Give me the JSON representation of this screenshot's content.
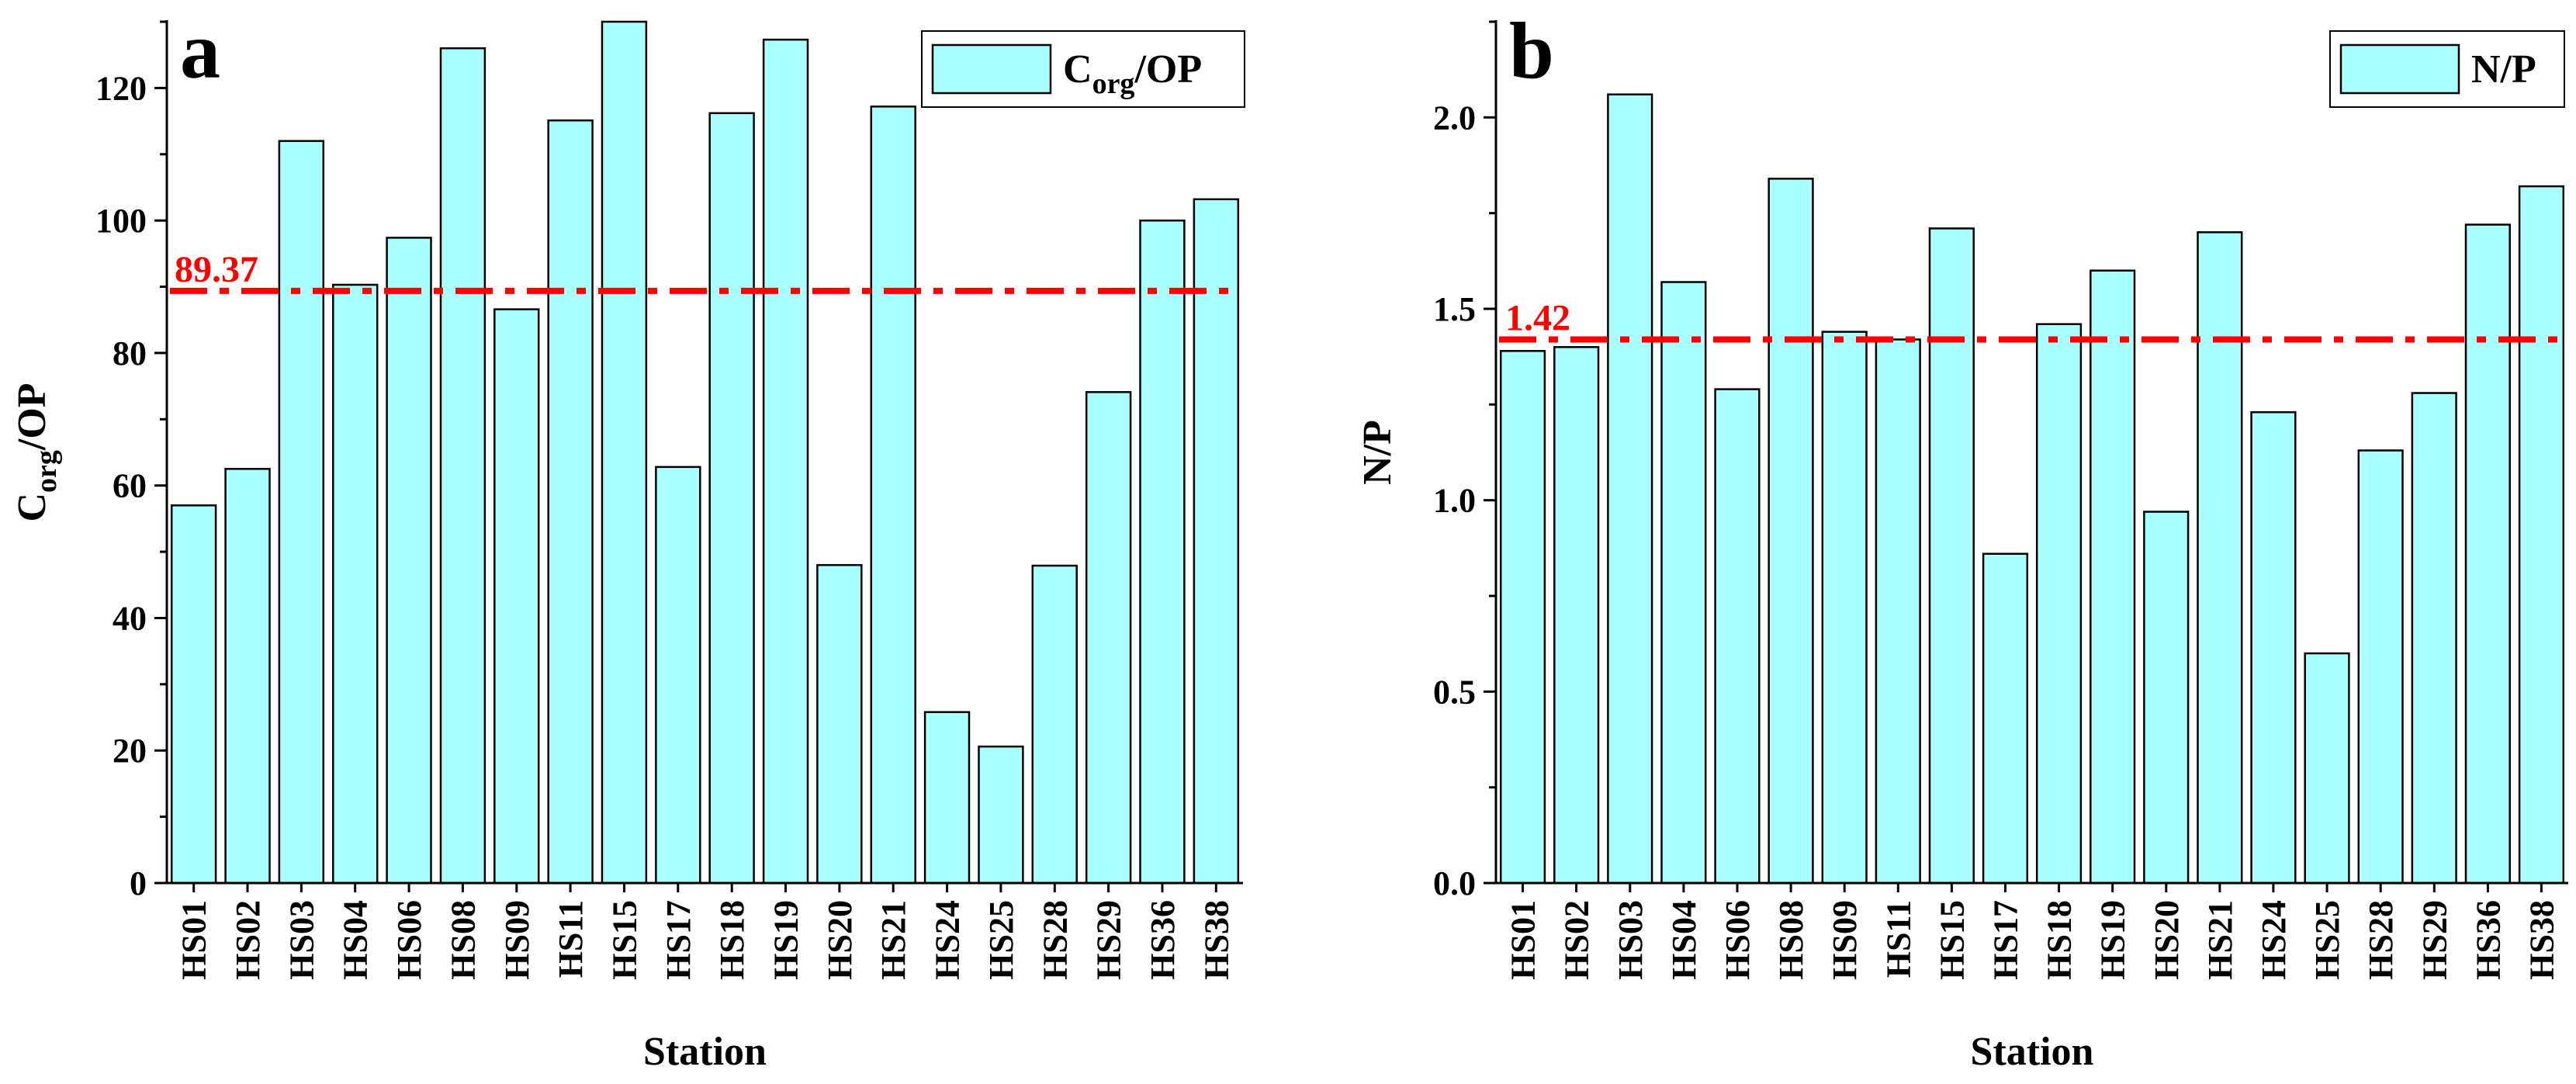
{
  "chart_data": [
    {
      "panel": "a",
      "type": "bar",
      "title": "",
      "xlabel": "Station",
      "ylabel": {
        "main": "C",
        "sub": "org",
        "rest": "/OP"
      },
      "legend": {
        "main": "C",
        "sub": "org",
        "rest": "/OP",
        "position": "top-right"
      },
      "ylim": [
        0,
        130
      ],
      "yticks": [
        0,
        20,
        40,
        60,
        80,
        100,
        120
      ],
      "ytick_labels": [
        "0",
        "20",
        "40",
        "60",
        "80",
        "100",
        "120"
      ],
      "categories": [
        "HS01",
        "HS02",
        "HS03",
        "HS04",
        "HS06",
        "HS08",
        "HS09",
        "HS11",
        "HS15",
        "HS17",
        "HS18",
        "HS19",
        "HS20",
        "HS21",
        "HS24",
        "HS25",
        "HS28",
        "HS29",
        "HS36",
        "HS38"
      ],
      "values": [
        57,
        62.5,
        112,
        90.3,
        97.4,
        126,
        86.6,
        115.1,
        130,
        62.8,
        116.2,
        127.3,
        48,
        117.2,
        25.8,
        20.6,
        47.9,
        74.1,
        100,
        103.2
      ],
      "reference": {
        "value": 89.37,
        "label": "89.37",
        "color": "#ff0000"
      },
      "bar_color": "#aaffff"
    },
    {
      "panel": "b",
      "type": "bar",
      "title": "",
      "xlabel": "Station",
      "ylabel": {
        "main": "N/P",
        "sub": "",
        "rest": ""
      },
      "legend": {
        "main": "N/P",
        "sub": "",
        "rest": "",
        "position": "top-right"
      },
      "ylim": [
        0,
        2.25
      ],
      "yticks": [
        0,
        0.5,
        1.0,
        1.5,
        2.0
      ],
      "ytick_labels": [
        "0.0",
        "0.5",
        "1.0",
        "1.5",
        "2.0"
      ],
      "categories": [
        "HS01",
        "HS02",
        "HS03",
        "HS04",
        "HS06",
        "HS08",
        "HS09",
        "HS11",
        "HS15",
        "HS17",
        "HS18",
        "HS19",
        "HS20",
        "HS21",
        "HS24",
        "HS25",
        "HS28",
        "HS29",
        "HS36",
        "HS38"
      ],
      "values": [
        1.39,
        1.4,
        2.06,
        1.57,
        1.29,
        1.84,
        1.44,
        1.42,
        1.71,
        0.86,
        1.46,
        1.6,
        0.97,
        1.7,
        1.23,
        0.6,
        1.13,
        1.28,
        1.72,
        1.82
      ],
      "reference": {
        "value": 1.42,
        "label": "1.42",
        "color": "#ff0000"
      },
      "bar_color": "#aaffff"
    }
  ]
}
